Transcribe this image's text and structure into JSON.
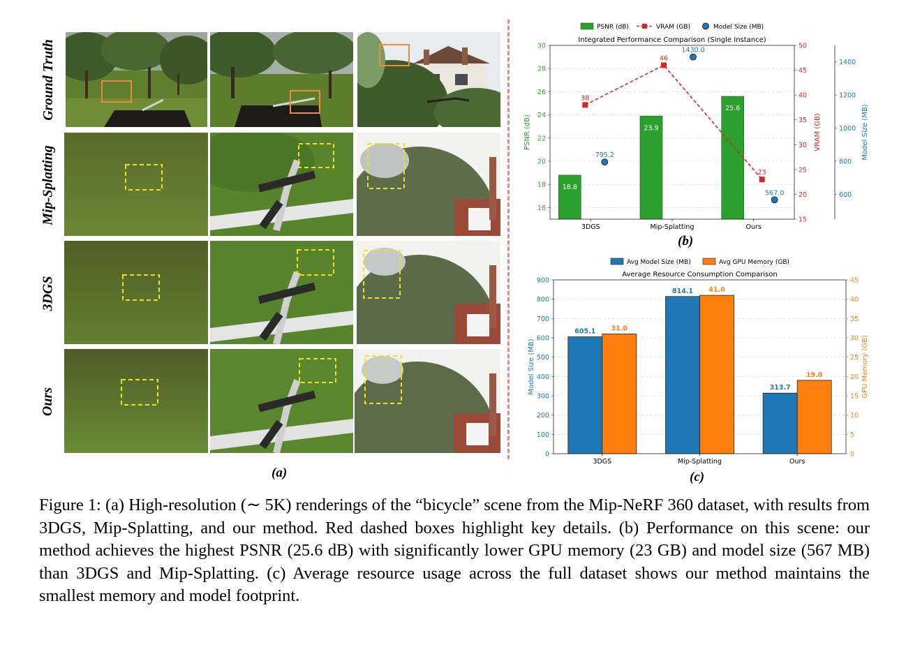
{
  "panel_a": {
    "row_labels": [
      "Ground Truth",
      "Mip-Splatting",
      "3DGS",
      "Ours"
    ],
    "label": "(a)"
  },
  "panel_b": {
    "label": "(b)"
  },
  "panel_c": {
    "label": "(c)"
  },
  "caption": "Figure 1: (a) High-resolution (∼ 5K) renderings of the “bicycle” scene from the Mip-NeRF 360 dataset, with results from 3DGS, Mip-Splatting, and our method. Red dashed boxes highlight key details. (b) Performance on this scene: our method achieves the highest PSNR (25.6 dB) with significantly lower GPU memory (23 GB) and model size (567 MB) than 3DGS and Mip-Splatting. (c) Average resource usage across the full dataset shows our method maintains the smallest memory and model footprint.",
  "chart_data": [
    {
      "type": "bar",
      "title": "Integrated Performance Comparison (Single Instance)",
      "categories": [
        "3DGS",
        "Mip-Splatting",
        "Ours"
      ],
      "series": [
        {
          "name": "PSNR (dB)",
          "kind": "bar",
          "axis": "left",
          "color": "#2ca02c",
          "values": [
            18.8,
            23.9,
            25.6
          ],
          "labels": [
            "18.8",
            "23.9",
            "25.6"
          ]
        },
        {
          "name": "VRAM (GB)",
          "kind": "line",
          "axis": "right1",
          "color": "#d62728",
          "values": [
            38,
            46,
            23
          ],
          "labels": [
            "38",
            "46",
            "23"
          ]
        },
        {
          "name": "Model Size (MB)",
          "kind": "scatter",
          "axis": "right2",
          "color": "#1f77b4",
          "values": [
            795.2,
            1430.0,
            567.0
          ],
          "labels": [
            "795.2",
            "1430.0",
            "567.0"
          ]
        }
      ],
      "axes": {
        "left": {
          "label": "PSNR (dB)",
          "ylim": [
            15,
            30
          ],
          "ticks": [
            "16",
            "18",
            "20",
            "22",
            "24",
            "26",
            "28",
            "30"
          ],
          "color": "#2ca02c"
        },
        "right1": {
          "label": "VRAM (GB)",
          "ylim": [
            15,
            50
          ],
          "ticks": [
            "15",
            "20",
            "25",
            "30",
            "35",
            "40",
            "45",
            "50"
          ],
          "color": "#d62728"
        },
        "right2": {
          "label": "Model Size (MB)",
          "ylim": [
            450,
            1500
          ],
          "ticks": [
            "600",
            "800",
            "1000",
            "1200",
            "1400"
          ],
          "color": "#1f77b4"
        }
      },
      "legend": "top",
      "grid": true
    },
    {
      "type": "bar",
      "title": "Average Resource Consumption Comparison",
      "categories": [
        "3DGS",
        "Mip-Splatting",
        "Ours"
      ],
      "series": [
        {
          "name": "Avg Model Size (MB)",
          "axis": "left",
          "color": "#1f77b4",
          "values": [
            605.1,
            814.1,
            313.7
          ],
          "labels": [
            "605.1",
            "814.1",
            "313.7"
          ]
        },
        {
          "name": "Avg GPU Memory (GB)",
          "axis": "right",
          "color": "#ff7f0e",
          "values": [
            31.0,
            41.0,
            19.0
          ],
          "labels": [
            "31.0",
            "41.0",
            "19.0"
          ]
        }
      ],
      "axes": {
        "left": {
          "label": "Model Size (MB)",
          "ylim": [
            0,
            900
          ],
          "ticks": [
            "0",
            "100",
            "200",
            "300",
            "400",
            "500",
            "600",
            "700",
            "800",
            "900"
          ],
          "color": "#1f77b4"
        },
        "right": {
          "label": "GPU Memory (GB)",
          "ylim": [
            0,
            45
          ],
          "ticks": [
            "0",
            "5",
            "10",
            "15",
            "20",
            "25",
            "30",
            "35",
            "40",
            "45"
          ],
          "color": "#ff7f0e"
        }
      },
      "legend": "top",
      "grid": true
    }
  ]
}
